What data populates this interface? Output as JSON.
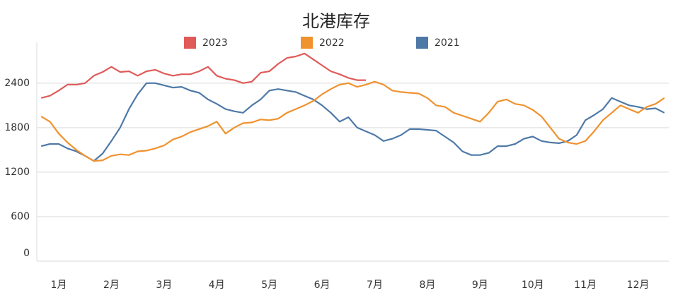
{
  "chart_data": {
    "type": "line",
    "title": "北港库存",
    "categories": [
      null,
      null,
      "1月",
      null,
      null,
      null,
      null,
      null,
      "2月",
      null,
      null,
      null,
      null,
      null,
      "3月",
      null,
      null,
      null,
      null,
      null,
      "4月",
      null,
      null,
      null,
      null,
      null,
      "5月",
      null,
      null,
      null,
      null,
      null,
      "6月",
      null,
      null,
      null,
      null,
      null,
      "7月",
      null,
      null,
      null,
      null,
      null,
      "8月",
      null,
      null,
      null,
      null,
      null,
      "9月",
      null,
      null,
      null,
      null,
      null,
      "10月",
      null,
      null,
      null,
      null,
      null,
      "11月",
      null,
      null,
      null,
      null,
      null,
      "12月",
      null,
      null,
      null
    ],
    "series": [
      {
        "name": "2023",
        "color": "#e05a5a",
        "values": [
          2200,
          2230,
          2300,
          2380,
          2380,
          2400,
          2500,
          2550,
          2620,
          2550,
          2560,
          2500,
          2560,
          2580,
          2530,
          2500,
          2520,
          2520,
          2560,
          2620,
          2500,
          2460,
          2440,
          2400,
          2420,
          2540,
          2560,
          2660,
          2740,
          2760,
          2800,
          2720,
          2640,
          2560,
          2520,
          2470,
          2440,
          2440,
          null,
          null,
          null,
          null,
          null,
          null,
          null,
          null,
          null,
          null,
          null,
          null,
          null,
          null,
          null,
          null,
          null,
          null,
          null,
          null,
          null,
          null,
          null,
          null,
          null,
          null,
          null,
          null,
          null,
          null,
          null,
          null,
          null,
          null
        ]
      },
      {
        "name": "2022",
        "color": "#f0922e",
        "values": [
          1950,
          1880,
          1720,
          1600,
          1500,
          1420,
          1350,
          1360,
          1420,
          1440,
          1430,
          1480,
          1490,
          1520,
          1560,
          1640,
          1680,
          1740,
          1780,
          1820,
          1880,
          1720,
          1800,
          1860,
          1870,
          1910,
          1900,
          1920,
          2000,
          2050,
          2100,
          2160,
          2250,
          2320,
          2380,
          2400,
          2350,
          2380,
          2420,
          2380,
          2300,
          2280,
          2270,
          2260,
          2200,
          2100,
          2080,
          2000,
          1960,
          1920,
          1880,
          2000,
          2150,
          2180,
          2120,
          2100,
          2040,
          1950,
          1800,
          1650,
          1600,
          1580,
          1620,
          1750,
          1900,
          2000,
          2100,
          2050,
          2000,
          2080,
          2120,
          2200
        ]
      },
      {
        "name": "2021",
        "color": "#4e79a7",
        "values": [
          1550,
          1580,
          1580,
          1520,
          1480,
          1420,
          1350,
          1450,
          1620,
          1800,
          2050,
          2250,
          2400,
          2400,
          2370,
          2340,
          2350,
          2300,
          2270,
          2180,
          2120,
          2050,
          2020,
          2000,
          2100,
          2180,
          2300,
          2320,
          2300,
          2280,
          2230,
          2180,
          2100,
          2000,
          1880,
          1940,
          1800,
          1750,
          1700,
          1620,
          1650,
          1700,
          1780,
          1780,
          1770,
          1760,
          1680,
          1600,
          1480,
          1430,
          1430,
          1460,
          1550,
          1550,
          1580,
          1650,
          1680,
          1620,
          1600,
          1590,
          1620,
          1700,
          1900,
          1970,
          2050,
          2200,
          2150,
          2100,
          2080,
          2050,
          2060,
          2000
        ]
      }
    ],
    "ylim": [
      0,
      2950
    ],
    "yticks": [
      0,
      600,
      1200,
      1800,
      2400
    ],
    "grid": true
  }
}
